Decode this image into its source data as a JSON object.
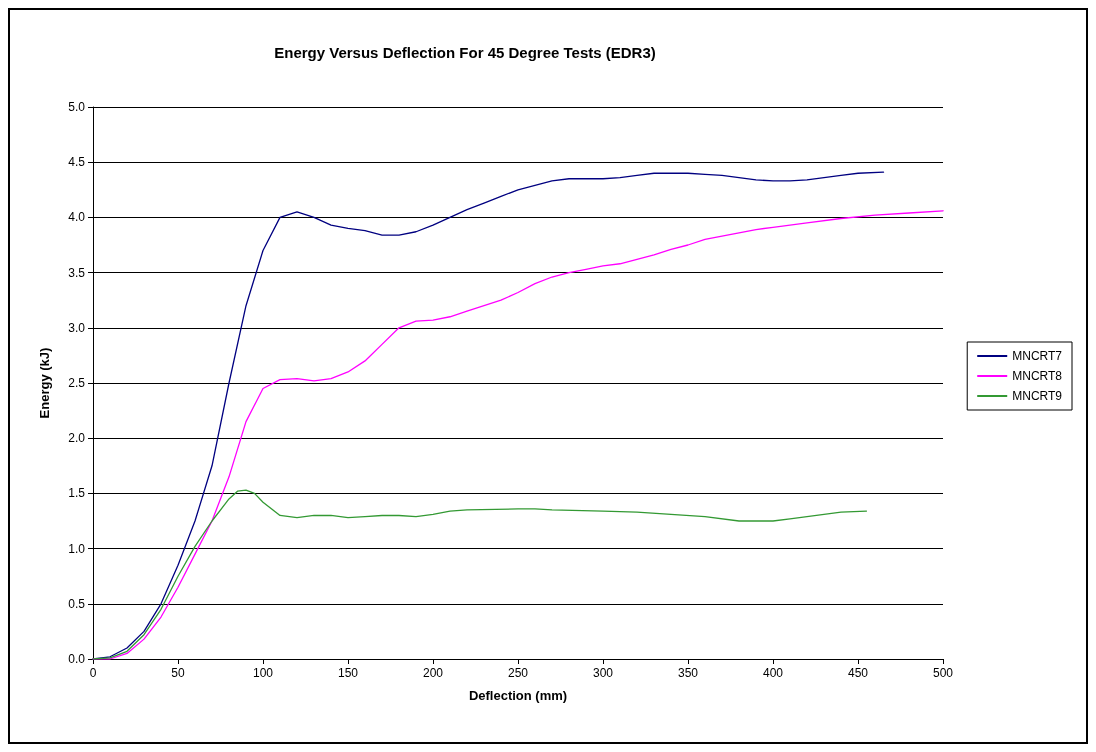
{
  "chart_data": {
    "type": "line",
    "title": "Energy Versus Deflection For 45 Degree Tests (EDR3)",
    "xlabel": "Deflection (mm)",
    "ylabel": "Energy (kJ)",
    "xlim": [
      0,
      500
    ],
    "xticks": [
      0,
      50,
      100,
      150,
      200,
      250,
      300,
      350,
      400,
      450,
      500
    ],
    "ylim": [
      0,
      5
    ],
    "yticks": [
      {
        "value": 0,
        "label": "0.0"
      },
      {
        "value": 0.5,
        "label": "0.5"
      },
      {
        "value": 1,
        "label": "1.0"
      },
      {
        "value": 1.5,
        "label": "1.5"
      },
      {
        "value": 2,
        "label": "2.0"
      },
      {
        "value": 2.5,
        "label": "2.5"
      },
      {
        "value": 3,
        "label": "3.0"
      },
      {
        "value": 3.5,
        "label": "3.5"
      },
      {
        "value": 4,
        "label": "4.0"
      },
      {
        "value": 4.5,
        "label": "4.5"
      },
      {
        "value": 5,
        "label": "5.0"
      }
    ],
    "grid": "y",
    "legend": "right",
    "marker": "none",
    "line_style": "solid",
    "series": [
      {
        "name": "MNCRT7",
        "color": "#000080",
        "x": [
          0,
          10,
          20,
          30,
          40,
          50,
          60,
          70,
          80,
          90,
          100,
          110,
          120,
          130,
          140,
          150,
          160,
          170,
          180,
          190,
          200,
          210,
          220,
          230,
          240,
          250,
          260,
          270,
          280,
          290,
          300,
          310,
          320,
          330,
          350,
          360,
          370,
          380,
          390,
          400,
          410,
          420,
          430,
          440,
          450,
          465
        ],
        "values": [
          0,
          0.02,
          0.1,
          0.25,
          0.5,
          0.85,
          1.25,
          1.75,
          2.5,
          3.2,
          3.7,
          4.0,
          4.05,
          4.0,
          3.93,
          3.9,
          3.88,
          3.84,
          3.84,
          3.87,
          3.93,
          4.0,
          4.07,
          4.13,
          4.19,
          4.25,
          4.29,
          4.33,
          4.35,
          4.35,
          4.35,
          4.36,
          4.38,
          4.4,
          4.4,
          4.39,
          4.38,
          4.36,
          4.34,
          4.33,
          4.33,
          4.34,
          4.36,
          4.38,
          4.4,
          4.41
        ]
      },
      {
        "name": "MNCRT8",
        "color": "#ff00ff",
        "x": [
          0,
          10,
          20,
          30,
          40,
          50,
          60,
          70,
          80,
          90,
          100,
          110,
          120,
          130,
          140,
          150,
          160,
          170,
          180,
          190,
          200,
          210,
          220,
          230,
          240,
          250,
          260,
          270,
          280,
          290,
          300,
          310,
          320,
          330,
          340,
          350,
          360,
          370,
          380,
          390,
          400,
          420,
          440,
          460,
          480,
          500
        ],
        "values": [
          0,
          0,
          0.05,
          0.18,
          0.38,
          0.65,
          0.95,
          1.25,
          1.65,
          2.15,
          2.45,
          2.53,
          2.54,
          2.52,
          2.54,
          2.6,
          2.7,
          2.85,
          3.0,
          3.06,
          3.07,
          3.1,
          3.15,
          3.2,
          3.25,
          3.32,
          3.4,
          3.46,
          3.5,
          3.53,
          3.56,
          3.58,
          3.62,
          3.66,
          3.71,
          3.75,
          3.8,
          3.83,
          3.86,
          3.89,
          3.91,
          3.95,
          3.99,
          4.02,
          4.04,
          4.06
        ]
      },
      {
        "name": "MNCRT9",
        "color": "#339933",
        "x": [
          0,
          10,
          20,
          30,
          40,
          50,
          60,
          70,
          80,
          85,
          90,
          95,
          100,
          110,
          120,
          130,
          140,
          150,
          160,
          170,
          180,
          190,
          200,
          210,
          220,
          250,
          260,
          270,
          300,
          320,
          340,
          360,
          380,
          400,
          410,
          430,
          440,
          455
        ],
        "values": [
          0,
          0.01,
          0.07,
          0.22,
          0.45,
          0.75,
          1.02,
          1.25,
          1.45,
          1.52,
          1.53,
          1.5,
          1.42,
          1.3,
          1.28,
          1.3,
          1.3,
          1.28,
          1.29,
          1.3,
          1.3,
          1.29,
          1.31,
          1.34,
          1.35,
          1.36,
          1.36,
          1.35,
          1.34,
          1.33,
          1.31,
          1.29,
          1.25,
          1.25,
          1.27,
          1.31,
          1.33,
          1.34
        ]
      }
    ]
  }
}
